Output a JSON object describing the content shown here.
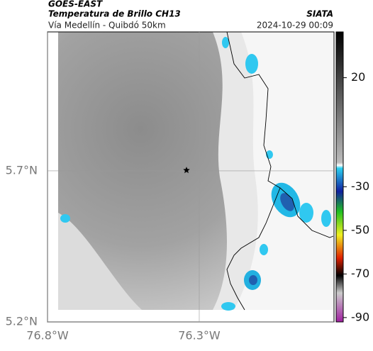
{
  "header": {
    "product": "GOES-EAST",
    "title": "Temperatura de Brillo CH13",
    "source": "SIATA",
    "subtitle": "Vía Medellín - Quibdó 50km",
    "datetime": "2024-10-29 00:09"
  },
  "map": {
    "xlim": [
      -76.8,
      -75.856
    ],
    "ylim": [
      5.2,
      6.16
    ],
    "xticks": [
      {
        "value": -76.8,
        "label": "76.8°W"
      },
      {
        "value": -76.3,
        "label": "76.3°W"
      }
    ],
    "yticks": [
      {
        "value": 5.2,
        "label": "5.2°N"
      },
      {
        "value": 5.7,
        "label": "5.7°N"
      }
    ],
    "grid": true,
    "marker": {
      "lon": -76.342,
      "lat": 5.702
    }
  },
  "colorbar": {
    "lim": [
      41,
      -92
    ],
    "ticks": [
      20,
      -30,
      -50,
      -70,
      -90
    ]
  }
}
